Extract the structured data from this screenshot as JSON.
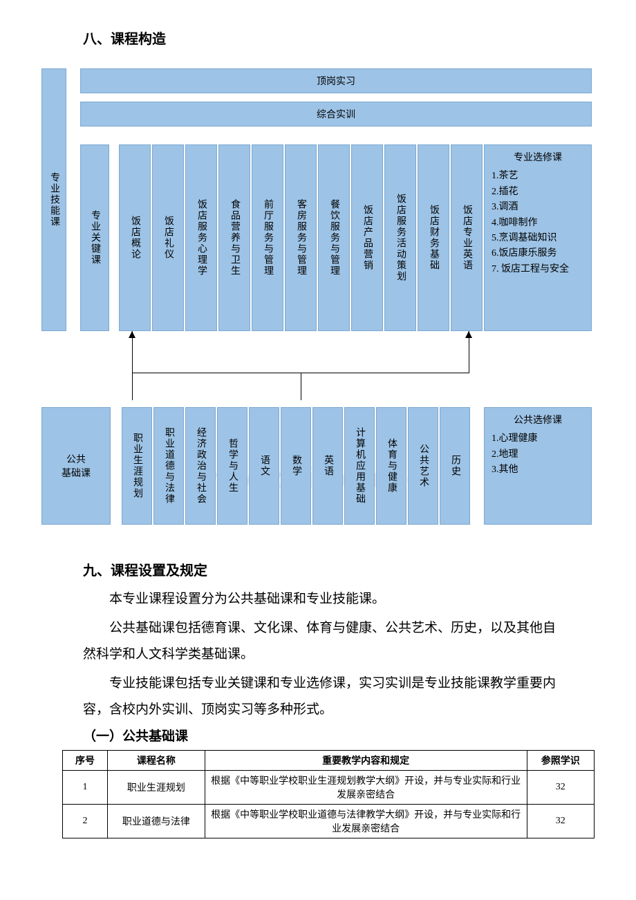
{
  "watermark": "www.zixin.com.cn",
  "section8_title": "八、课程构造",
  "section9_title": "九、课程设置及规定",
  "subsection_title": "（一）公共基础课",
  "diagram": {
    "box_color": "#9dc3e6",
    "border_color": "#7ba8d0",
    "left_skill": "专业技能课",
    "left_public_line1": "公共",
    "left_public_line2": "基础课",
    "top_internship": "顶岗实习",
    "top_training": "综合实训",
    "core_label": "专业关键课",
    "core_courses": [
      "饭店概论",
      "饭店礼仪",
      "饭店服务心理学",
      "食品营养与卫生",
      "前厅服务与管理",
      "客房服务与管理",
      "餐饮服务与管理",
      "饭店产品营销",
      "饭店服务活动策划",
      "饭店财务基础",
      "饭店专业英语"
    ],
    "skill_elective_title": "专业选修课",
    "skill_electives": [
      "1.茶艺",
      "2.插花",
      "3.调酒",
      "4.咖啡制作",
      "5.烹调基础知识",
      "6.饭店康乐服务",
      "7. 饭店工程与安全"
    ],
    "public_courses": [
      "职业生涯规划",
      "职业道德与法律",
      "经济政治与社会",
      "哲学与人生",
      "语文",
      "数学",
      "英语",
      "计算机应用基础",
      "体育与健康",
      "公共艺术",
      "历史"
    ],
    "public_elective_title": "公共选修课",
    "public_electives": [
      "1.心理健康",
      "2.地理",
      "3.其他"
    ]
  },
  "paragraphs": [
    "本专业课程设置分为公共基础课和专业技能课。",
    "公共基础课包括德育课、文化课、体育与健康、公共艺术、历史，以及其他自然科学和人文科学类基础课。",
    "专业技能课包括专业关键课和专业选修课，实习实训是专业技能课教学重要内容，含校内外实训、顶岗实习等多种形式。"
  ],
  "table": {
    "headers": [
      "序号",
      "课程名称",
      "重要教学内容和规定",
      "参照学识"
    ],
    "col_widths": [
      "60px",
      "130px",
      "430px",
      "90px"
    ],
    "rows": [
      {
        "num": "1",
        "name": "职业生涯规划",
        "desc": "根据《中等职业学校职业生涯规划教学大纲》开设，并与专业实际和行业发展亲密结合",
        "hours": "32"
      },
      {
        "num": "2",
        "name": "职业道德与法律",
        "desc": "根据《中等职业学校职业道德与法律教学大纲》开设，并与专业实际和行业发展亲密结合",
        "hours": "32"
      }
    ]
  }
}
